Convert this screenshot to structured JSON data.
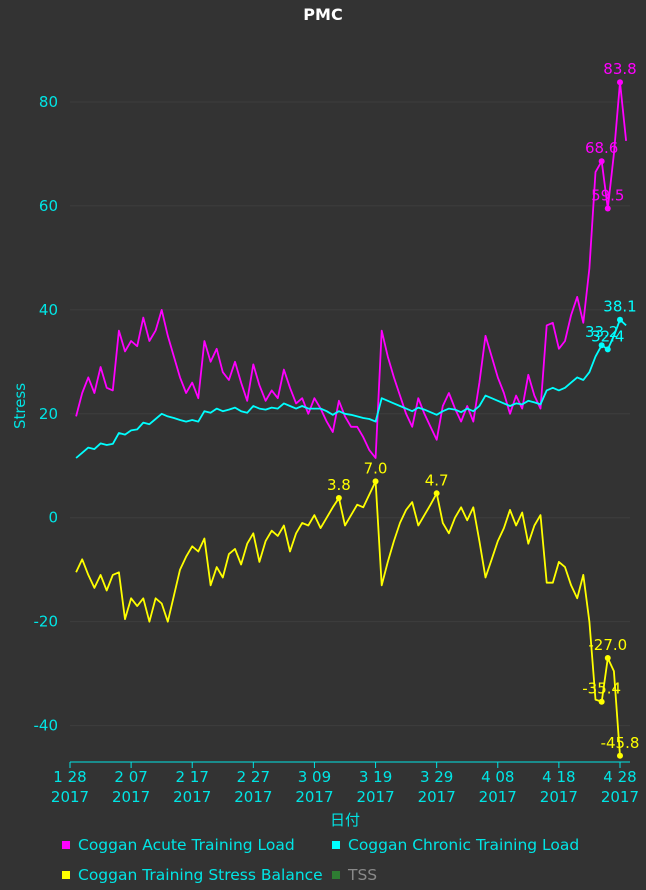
{
  "chart_data": {
    "type": "line",
    "title": "PMC",
    "xlabel": "日付",
    "ylabel": "Stress",
    "ylim": [
      -47,
      90
    ],
    "yticks": [
      -40,
      -20,
      0,
      20,
      40,
      60,
      80
    ],
    "xticks": [
      {
        "label1": "1 28",
        "label2": "2017",
        "day": 0
      },
      {
        "label1": "2 07",
        "label2": "2017",
        "day": 10
      },
      {
        "label1": "2 17",
        "label2": "2017",
        "day": 20
      },
      {
        "label1": "2 27",
        "label2": "2017",
        "day": 30
      },
      {
        "label1": "3 09",
        "label2": "2017",
        "day": 40
      },
      {
        "label1": "3 19",
        "label2": "2017",
        "day": 50
      },
      {
        "label1": "3 29",
        "label2": "2017",
        "day": 60
      },
      {
        "label1": "4 08",
        "label2": "2017",
        "day": 70
      },
      {
        "label1": "4 18",
        "label2": "2017",
        "day": 80
      },
      {
        "label1": "4 28",
        "label2": "2017",
        "day": 90
      }
    ],
    "series": [
      {
        "name": "Coggan Acute Training Load",
        "color": "#ff00ff",
        "points": [
          [
            1,
            19.5
          ],
          [
            2,
            24
          ],
          [
            3,
            27
          ],
          [
            4,
            24
          ],
          [
            5,
            29
          ],
          [
            6,
            25
          ],
          [
            7,
            24.5
          ],
          [
            8,
            36
          ],
          [
            9,
            32
          ],
          [
            10,
            34
          ],
          [
            11,
            33
          ],
          [
            12,
            38.5
          ],
          [
            13,
            34
          ],
          [
            14,
            36
          ],
          [
            15,
            40
          ],
          [
            16,
            35
          ],
          [
            17,
            31
          ],
          [
            18,
            27
          ],
          [
            19,
            24
          ],
          [
            20,
            26
          ],
          [
            21,
            23
          ],
          [
            22,
            34
          ],
          [
            23,
            30
          ],
          [
            24,
            32.5
          ],
          [
            25,
            28
          ],
          [
            26,
            26.5
          ],
          [
            27,
            30
          ],
          [
            28,
            26
          ],
          [
            29,
            22.5
          ],
          [
            30,
            29.5
          ],
          [
            31,
            25.5
          ],
          [
            32,
            22.5
          ],
          [
            33,
            24.5
          ],
          [
            34,
            23
          ],
          [
            35,
            28.5
          ],
          [
            36,
            25
          ],
          [
            37,
            22
          ],
          [
            38,
            23
          ],
          [
            39,
            20
          ],
          [
            40,
            23
          ],
          [
            41,
            21
          ],
          [
            42,
            18.5
          ],
          [
            43,
            16.5
          ],
          [
            44,
            22.5
          ],
          [
            45,
            19.5
          ],
          [
            46,
            17.5
          ],
          [
            47,
            17.5
          ],
          [
            48,
            15.5
          ],
          [
            49,
            13
          ],
          [
            50,
            11.5
          ],
          [
            51,
            36
          ],
          [
            52,
            31
          ],
          [
            53,
            27
          ],
          [
            54,
            23.5
          ],
          [
            55,
            20
          ],
          [
            56,
            17.5
          ],
          [
            57,
            23
          ],
          [
            58,
            20
          ],
          [
            59,
            17.5
          ],
          [
            60,
            15
          ],
          [
            61,
            21.5
          ],
          [
            62,
            24
          ],
          [
            63,
            21
          ],
          [
            64,
            18.5
          ],
          [
            65,
            21.5
          ],
          [
            66,
            18.5
          ],
          [
            67,
            26
          ],
          [
            68,
            35
          ],
          [
            69,
            31
          ],
          [
            70,
            27
          ],
          [
            71,
            24
          ],
          [
            72,
            20
          ],
          [
            73,
            23.5
          ],
          [
            74,
            21
          ],
          [
            75,
            27.5
          ],
          [
            76,
            23.5
          ],
          [
            77,
            21
          ],
          [
            78,
            37
          ],
          [
            79,
            37.5
          ],
          [
            80,
            32.5
          ],
          [
            81,
            34
          ],
          [
            82,
            39
          ],
          [
            83,
            42.5
          ],
          [
            84,
            37.5
          ],
          [
            85,
            48
          ],
          [
            86,
            66.5
          ],
          [
            87,
            68.6
          ],
          [
            88,
            59.5
          ],
          [
            89,
            70
          ],
          [
            90,
            83.8
          ],
          [
            91,
            72.5
          ]
        ]
      },
      {
        "name": "Coggan Chronic Training Load",
        "color": "#00ffff",
        "points": [
          [
            1,
            11.5
          ],
          [
            2,
            12.5
          ],
          [
            3,
            13.5
          ],
          [
            4,
            13.2
          ],
          [
            5,
            14.3
          ],
          [
            6,
            14
          ],
          [
            7,
            14.2
          ],
          [
            8,
            16.3
          ],
          [
            9,
            16
          ],
          [
            10,
            16.8
          ],
          [
            11,
            17
          ],
          [
            12,
            18.3
          ],
          [
            13,
            18
          ],
          [
            14,
            19
          ],
          [
            15,
            20
          ],
          [
            16,
            19.5
          ],
          [
            17,
            19.2
          ],
          [
            18,
            18.8
          ],
          [
            19,
            18.5
          ],
          [
            20,
            18.8
          ],
          [
            21,
            18.5
          ],
          [
            22,
            20.5
          ],
          [
            23,
            20.2
          ],
          [
            24,
            21
          ],
          [
            25,
            20.5
          ],
          [
            26,
            20.8
          ],
          [
            27,
            21.2
          ],
          [
            28,
            20.5
          ],
          [
            29,
            20.2
          ],
          [
            30,
            21.5
          ],
          [
            31,
            21
          ],
          [
            32,
            20.8
          ],
          [
            33,
            21.2
          ],
          [
            34,
            21
          ],
          [
            35,
            22
          ],
          [
            36,
            21.5
          ],
          [
            37,
            21
          ],
          [
            38,
            21.5
          ],
          [
            39,
            21
          ],
          [
            40,
            21
          ],
          [
            41,
            21
          ],
          [
            42,
            20.5
          ],
          [
            43,
            19.8
          ],
          [
            44,
            20.5
          ],
          [
            45,
            20
          ],
          [
            46,
            19.8
          ],
          [
            47,
            19.5
          ],
          [
            48,
            19.2
          ],
          [
            49,
            19
          ],
          [
            50,
            18.5
          ],
          [
            51,
            23
          ],
          [
            52,
            22.5
          ],
          [
            53,
            22
          ],
          [
            54,
            21.5
          ],
          [
            55,
            21
          ],
          [
            56,
            20.5
          ],
          [
            57,
            21.2
          ],
          [
            58,
            20.8
          ],
          [
            59,
            20.3
          ],
          [
            60,
            19.8
          ],
          [
            61,
            20.5
          ],
          [
            62,
            21
          ],
          [
            63,
            20.8
          ],
          [
            64,
            20.3
          ],
          [
            65,
            21
          ],
          [
            66,
            20.5
          ],
          [
            67,
            21.5
          ],
          [
            68,
            23.5
          ],
          [
            69,
            23
          ],
          [
            70,
            22.5
          ],
          [
            71,
            22
          ],
          [
            72,
            21.5
          ],
          [
            73,
            22
          ],
          [
            74,
            21.8
          ],
          [
            75,
            22.5
          ],
          [
            76,
            22.2
          ],
          [
            77,
            21.8
          ],
          [
            78,
            24.5
          ],
          [
            79,
            25
          ],
          [
            80,
            24.5
          ],
          [
            81,
            25
          ],
          [
            82,
            26
          ],
          [
            83,
            27
          ],
          [
            84,
            26.5
          ],
          [
            85,
            28
          ],
          [
            86,
            31
          ],
          [
            87,
            33.2
          ],
          [
            88,
            32.4
          ],
          [
            89,
            35
          ],
          [
            90,
            38.1
          ],
          [
            91,
            37
          ]
        ]
      },
      {
        "name": "Coggan Training Stress Balance",
        "color": "#ffff00",
        "points": [
          [
            1,
            -10.5
          ],
          [
            2,
            -8
          ],
          [
            3,
            -11
          ],
          [
            4,
            -13.5
          ],
          [
            5,
            -11
          ],
          [
            6,
            -14
          ],
          [
            7,
            -11
          ],
          [
            8,
            -10.5
          ],
          [
            9,
            -19.5
          ],
          [
            10,
            -15.5
          ],
          [
            11,
            -17
          ],
          [
            12,
            -15.5
          ],
          [
            13,
            -20
          ],
          [
            14,
            -15.5
          ],
          [
            15,
            -16.5
          ],
          [
            16,
            -20
          ],
          [
            17,
            -15
          ],
          [
            18,
            -10
          ],
          [
            19,
            -7.5
          ],
          [
            20,
            -5.5
          ],
          [
            21,
            -6.5
          ],
          [
            22,
            -4
          ],
          [
            23,
            -13
          ],
          [
            24,
            -9.5
          ],
          [
            25,
            -11.5
          ],
          [
            26,
            -7
          ],
          [
            27,
            -6
          ],
          [
            28,
            -9
          ],
          [
            29,
            -5
          ],
          [
            30,
            -3
          ],
          [
            31,
            -8.5
          ],
          [
            32,
            -4.5
          ],
          [
            33,
            -2.5
          ],
          [
            34,
            -3.5
          ],
          [
            35,
            -1.5
          ],
          [
            36,
            -6.5
          ],
          [
            37,
            -3
          ],
          [
            38,
            -1
          ],
          [
            39,
            -1.5
          ],
          [
            40,
            0.5
          ],
          [
            41,
            -2
          ],
          [
            42,
            0
          ],
          [
            43,
            2
          ],
          [
            44,
            3.8
          ],
          [
            45,
            -1.5
          ],
          [
            46,
            0.5
          ],
          [
            47,
            2.5
          ],
          [
            48,
            2
          ],
          [
            49,
            4.5
          ],
          [
            50,
            7
          ],
          [
            51,
            -13
          ],
          [
            52,
            -8.5
          ],
          [
            53,
            -4.5
          ],
          [
            54,
            -1
          ],
          [
            55,
            1.5
          ],
          [
            56,
            3
          ],
          [
            57,
            -1.5
          ],
          [
            58,
            0.5
          ],
          [
            59,
            2.5
          ],
          [
            60,
            4.7
          ],
          [
            61,
            -1
          ],
          [
            62,
            -3
          ],
          [
            63,
            0
          ],
          [
            64,
            2
          ],
          [
            65,
            -0.5
          ],
          [
            66,
            2
          ],
          [
            67,
            -4.5
          ],
          [
            68,
            -11.5
          ],
          [
            69,
            -8
          ],
          [
            70,
            -4.5
          ],
          [
            71,
            -2
          ],
          [
            72,
            1.5
          ],
          [
            73,
            -1.5
          ],
          [
            74,
            1
          ],
          [
            75,
            -5
          ],
          [
            76,
            -1.5
          ],
          [
            77,
            0.5
          ],
          [
            78,
            -12.5
          ],
          [
            79,
            -12.5
          ],
          [
            80,
            -8.5
          ],
          [
            81,
            -9.5
          ],
          [
            82,
            -13
          ],
          [
            83,
            -15.5
          ],
          [
            84,
            -11
          ],
          [
            85,
            -20
          ],
          [
            86,
            -35
          ],
          [
            87,
            -35.4
          ],
          [
            88,
            -27
          ],
          [
            89,
            -29.5
          ],
          [
            90,
            -45.8
          ]
        ]
      }
    ],
    "annotations": [
      {
        "series": 0,
        "day": 87,
        "value": 68.6,
        "text": "68.6"
      },
      {
        "series": 0,
        "day": 88,
        "value": 59.5,
        "text": "59.5"
      },
      {
        "series": 0,
        "day": 90,
        "value": 83.8,
        "text": "83.8"
      },
      {
        "series": 1,
        "day": 87,
        "value": 33.2,
        "text": "33.2"
      },
      {
        "series": 1,
        "day": 88,
        "value": 32.4,
        "text": "32.4"
      },
      {
        "series": 1,
        "day": 90,
        "value": 38.1,
        "text": "38.1"
      },
      {
        "series": 2,
        "day": 44,
        "value": 3.8,
        "text": "3.8"
      },
      {
        "series": 2,
        "day": 50,
        "value": 7.0,
        "text": "7.0"
      },
      {
        "series": 2,
        "day": 60,
        "value": 4.7,
        "text": "4.7"
      },
      {
        "series": 2,
        "day": 87,
        "value": -35.4,
        "text": "-35.4"
      },
      {
        "series": 2,
        "day": 88,
        "value": -27.0,
        "text": "-27.0"
      },
      {
        "series": 2,
        "day": 90,
        "value": -45.8,
        "text": "-45.8"
      }
    ],
    "legend": {
      "placement": "bottom",
      "items": [
        {
          "label": "Coggan Acute Training Load",
          "color": "#ff00ff",
          "textColor": "#00e5e5"
        },
        {
          "label": "Coggan Chronic Training Load",
          "color": "#00ffff",
          "textColor": "#00e5e5"
        },
        {
          "label": "Coggan Training Stress Balance",
          "color": "#ffff00",
          "textColor": "#00e5e5"
        },
        {
          "label": "TSS",
          "color": "#2e7d32",
          "textColor": "#8a8a8a"
        }
      ]
    },
    "grid": true
  }
}
